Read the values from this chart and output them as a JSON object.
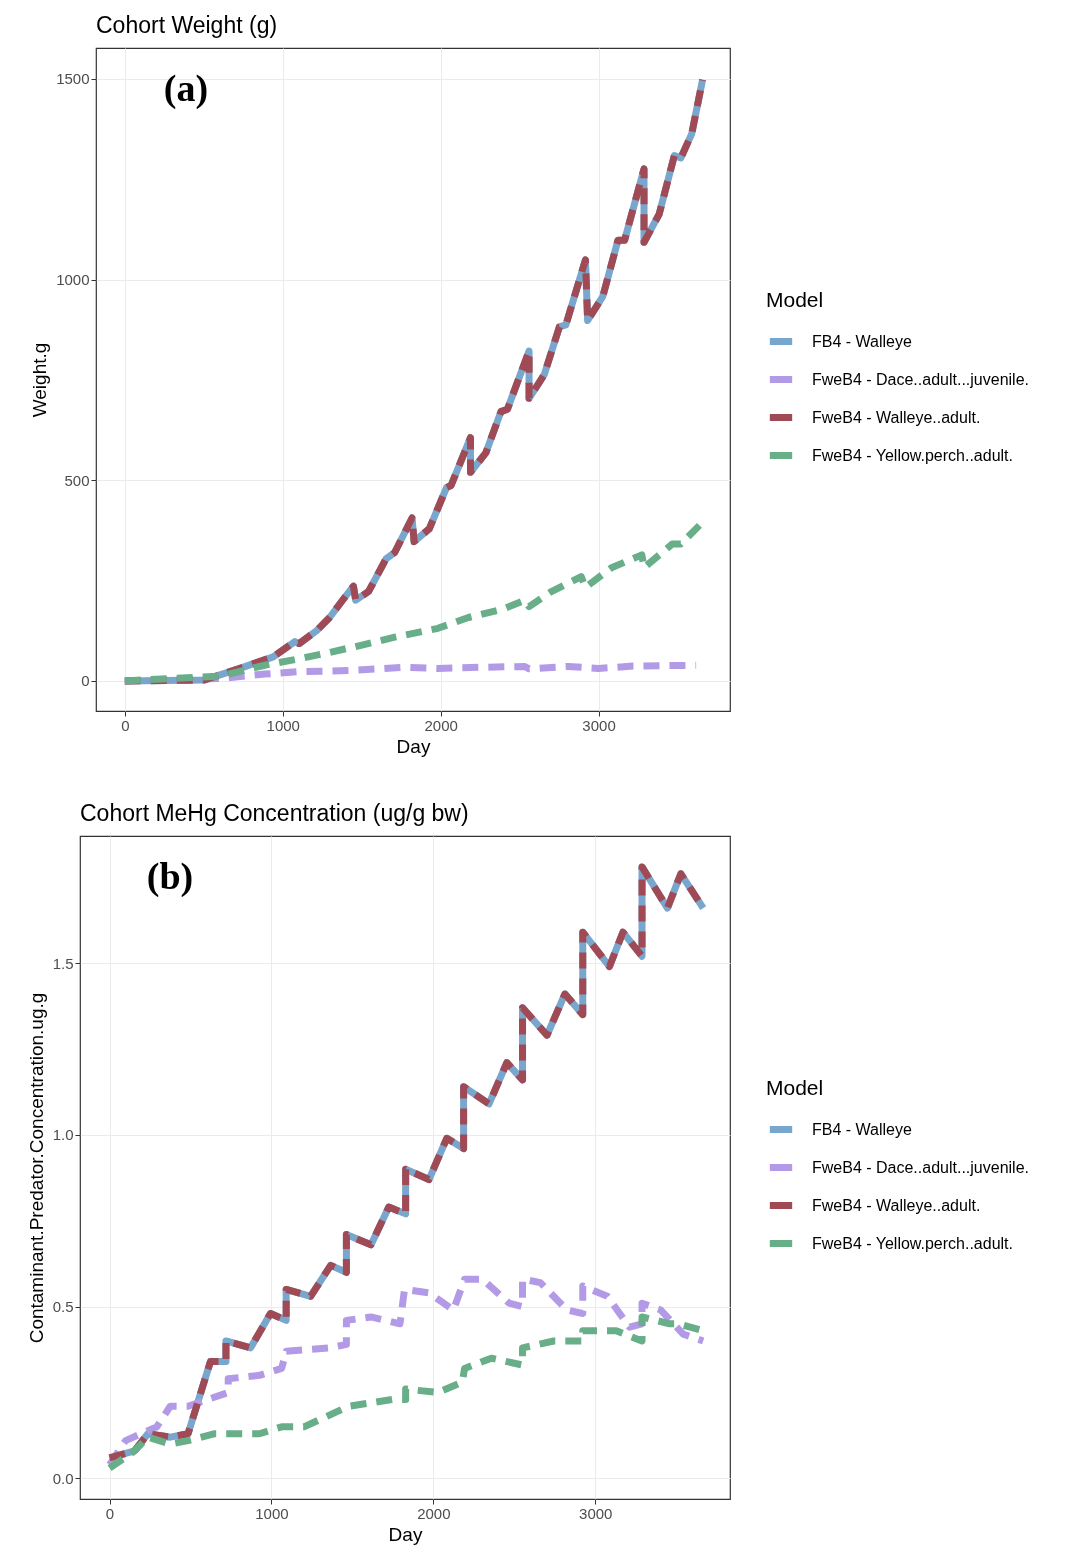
{
  "chart_data": [
    {
      "type": "line",
      "title": "Cohort Weight (g)",
      "xlabel": "Day",
      "ylabel": "Weight.g",
      "annotations": [
        "(a)"
      ],
      "legend_title": "Model",
      "legend": "right",
      "grid": true,
      "xlim": [
        -182.5,
        3832.5
      ],
      "xticks": [
        0,
        1000,
        2000,
        3000
      ],
      "ylim": [
        -75,
        1577
      ],
      "yticks": [
        0,
        500,
        1000,
        1500
      ],
      "series": [
        {
          "name": "FB4 - Walleye",
          "color": "#78a6cc",
          "line_style": "solid",
          "x": [
            0,
            500,
            720,
            940,
            1077,
            1104,
            1214,
            1297,
            1379,
            1448,
            1462,
            1544,
            1654,
            1709,
            1819,
            1832,
            1928,
            2038,
            2066,
            2189,
            2189,
            2286,
            2382,
            2423,
            2560,
            2560,
            2656,
            2752,
            2793,
            2917,
            2931,
            3027,
            3123,
            3165,
            3288,
            3288,
            3384,
            3480,
            3521,
            3590,
            3659
          ],
          "values": [
            0,
            2,
            30,
            60,
            98,
            93,
            125,
            158,
            201,
            236,
            201,
            223,
            304,
            320,
            406,
            347,
            379,
            482,
            487,
            606,
            520,
            568,
            671,
            677,
            822,
            704,
            763,
            882,
            887,
            1049,
            898,
            958,
            1098,
            1098,
            1276,
            1093,
            1163,
            1309,
            1303,
            1363,
            1498
          ]
        },
        {
          "name": "FweB4 - Dace..adult...juvenile.",
          "color": "#b39ae6",
          "line_style": "dashed",
          "x": [
            0,
            610,
            885,
            1104,
            1434,
            1764,
            1983,
            2258,
            2533,
            2560,
            2807,
            2999,
            3219,
            3618
          ],
          "values": [
            0,
            6,
            17,
            23,
            26,
            34,
            31,
            34,
            36,
            30,
            36,
            31,
            37,
            39
          ]
        },
        {
          "name": "FweB4 - Walleye..adult.",
          "color": "#a04a56",
          "line_style": "dashed",
          "x": [
            0,
            500,
            720,
            940,
            1077,
            1104,
            1214,
            1297,
            1379,
            1448,
            1462,
            1544,
            1654,
            1709,
            1819,
            1832,
            1928,
            2038,
            2066,
            2189,
            2189,
            2286,
            2382,
            2423,
            2560,
            2560,
            2656,
            2752,
            2793,
            2917,
            2931,
            3027,
            3123,
            3165,
            3288,
            3288,
            3384,
            3480,
            3521,
            3590,
            3659
          ],
          "values": [
            0,
            2,
            30,
            60,
            98,
            93,
            125,
            158,
            201,
            236,
            201,
            223,
            304,
            320,
            406,
            347,
            379,
            482,
            487,
            606,
            520,
            568,
            671,
            677,
            822,
            704,
            763,
            882,
            887,
            1049,
            898,
            958,
            1098,
            1098,
            1276,
            1093,
            1163,
            1309,
            1303,
            1363,
            1498
          ]
        },
        {
          "name": "FweB4 - Yellow.perch..adult.",
          "color": "#68ae88",
          "line_style": "dashed",
          "x": [
            0,
            610,
            885,
            1104,
            1297,
            1489,
            1709,
            1983,
            2176,
            2395,
            2533,
            2560,
            2698,
            2890,
            2917,
            3082,
            3274,
            3288,
            3467,
            3521,
            3645
          ],
          "values": [
            0,
            12,
            39,
            55,
            71,
            88,
            109,
            131,
            158,
            179,
            201,
            185,
            222,
            260,
            233,
            282,
            314,
            282,
            341,
            341,
            390
          ]
        }
      ]
    },
    {
      "type": "line",
      "title": "Cohort MeHg Concentration (ug/g bw)",
      "xlabel": "Day",
      "ylabel": "Contaminant.Predator.Concentration.ug.g",
      "annotations": [
        "(b)"
      ],
      "legend_title": "Model",
      "legend": "right",
      "grid": true,
      "xlim": [
        -182.5,
        3832.5
      ],
      "xticks": [
        0,
        1000,
        2000,
        3000
      ],
      "ylim": [
        -0.06,
        1.87
      ],
      "yticks": [
        {
          "value": 0,
          "label": "0.0"
        },
        0.5,
        {
          "value": 1,
          "label": "1.0"
        },
        1.5
      ],
      "series": [
        {
          "name": "FB4 - Walleye",
          "color": "#78a6cc",
          "line_style": "solid",
          "x": [
            0,
            154,
            237,
            375,
            485,
            623,
            719,
            719,
            871,
            994,
            1091,
            1091,
            1242,
            1366,
            1463,
            1463,
            1615,
            1725,
            1829,
            1829,
            1973,
            2083,
            2187,
            2187,
            2344,
            2454,
            2551,
            2551,
            2702,
            2813,
            2923,
            2923,
            3088,
            3171,
            3289,
            3289,
            3446,
            3529,
            3667
          ],
          "values": [
            0.06,
            0.08,
            0.13,
            0.12,
            0.13,
            0.34,
            0.34,
            0.4,
            0.38,
            0.48,
            0.46,
            0.55,
            0.53,
            0.62,
            0.6,
            0.71,
            0.68,
            0.79,
            0.77,
            0.9,
            0.87,
            0.99,
            0.96,
            1.14,
            1.09,
            1.21,
            1.16,
            1.37,
            1.29,
            1.41,
            1.35,
            1.59,
            1.49,
            1.59,
            1.52,
            1.78,
            1.66,
            1.76,
            1.66
          ]
        },
        {
          "name": "FweB4 - Dace..adult...juvenile.",
          "color": "#b39ae6",
          "line_style": "dashed",
          "x": [
            0,
            99,
            292,
            375,
            485,
            733,
            733,
            926,
            1063,
            1091,
            1366,
            1463,
            1463,
            1615,
            1794,
            1822,
            1973,
            2124,
            2193,
            2303,
            2468,
            2551,
            2551,
            2661,
            2826,
            2923,
            2923,
            3075,
            3212,
            3289,
            3289,
            3405,
            3543,
            3667
          ],
          "values": [
            0.04,
            0.11,
            0.15,
            0.21,
            0.21,
            0.25,
            0.29,
            0.3,
            0.32,
            0.37,
            0.38,
            0.39,
            0.46,
            0.47,
            0.45,
            0.55,
            0.54,
            0.49,
            0.58,
            0.58,
            0.51,
            0.5,
            0.58,
            0.57,
            0.49,
            0.48,
            0.56,
            0.53,
            0.44,
            0.45,
            0.51,
            0.49,
            0.42,
            0.4
          ]
        },
        {
          "name": "FweB4 - Walleye..adult.",
          "color": "#a04a56",
          "line_style": "dashed",
          "x": [
            0,
            154,
            237,
            375,
            485,
            623,
            719,
            719,
            871,
            994,
            1091,
            1091,
            1242,
            1366,
            1463,
            1463,
            1615,
            1725,
            1829,
            1829,
            1973,
            2083,
            2187,
            2187,
            2344,
            2454,
            2551,
            2551,
            2702,
            2813,
            2923,
            2923,
            3088,
            3171,
            3289,
            3289,
            3446,
            3529,
            3667
          ],
          "values": [
            0.06,
            0.08,
            0.13,
            0.12,
            0.13,
            0.34,
            0.34,
            0.4,
            0.38,
            0.48,
            0.46,
            0.55,
            0.53,
            0.62,
            0.6,
            0.71,
            0.68,
            0.79,
            0.77,
            0.9,
            0.87,
            0.99,
            0.96,
            1.14,
            1.09,
            1.21,
            1.16,
            1.37,
            1.29,
            1.41,
            1.35,
            1.59,
            1.49,
            1.59,
            1.52,
            1.78,
            1.66,
            1.76,
            1.66
          ]
        },
        {
          "name": "FweB4 - Yellow.perch..adult.",
          "color": "#68ae88",
          "line_style": "dashed",
          "x": [
            0,
            154,
            237,
            375,
            485,
            650,
            926,
            1063,
            1201,
            1339,
            1477,
            1752,
            1829,
            1829,
            2028,
            2179,
            2193,
            2358,
            2551,
            2551,
            2744,
            2923,
            2923,
            3130,
            3289,
            3289,
            3460,
            3515,
            3667
          ],
          "values": [
            0.03,
            0.08,
            0.12,
            0.1,
            0.11,
            0.13,
            0.13,
            0.15,
            0.15,
            0.18,
            0.21,
            0.23,
            0.23,
            0.26,
            0.25,
            0.28,
            0.32,
            0.35,
            0.33,
            0.38,
            0.4,
            0.4,
            0.43,
            0.43,
            0.4,
            0.47,
            0.45,
            0.45,
            0.43
          ]
        }
      ]
    }
  ]
}
